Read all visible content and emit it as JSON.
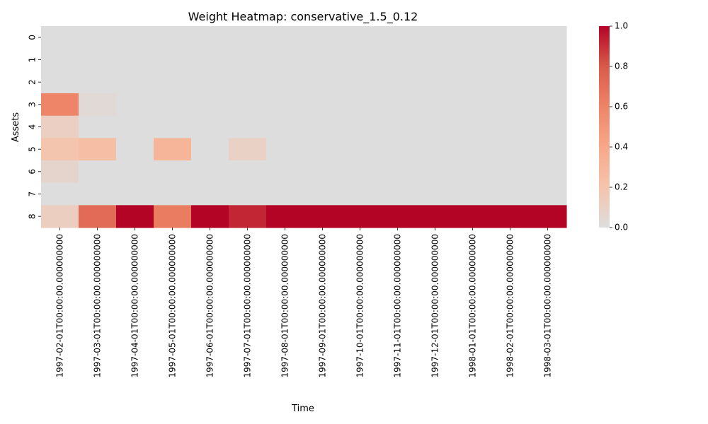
{
  "chart_data": {
    "type": "heatmap",
    "title": "Weight Heatmap: conservative_1.5_0.12",
    "xlabel": "Time",
    "ylabel": "Assets",
    "x": [
      "1997-02-01T00:00:00.000000000",
      "1997-03-01T00:00:00.000000000",
      "1997-04-01T00:00:00.000000000",
      "1997-05-01T00:00:00.000000000",
      "1997-06-01T00:00:00.000000000",
      "1997-07-01T00:00:00.000000000",
      "1997-08-01T00:00:00.000000000",
      "1997-09-01T00:00:00.000000000",
      "1997-10-01T00:00:00.000000000",
      "1997-11-01T00:00:00.000000000",
      "1997-12-01T00:00:00.000000000",
      "1998-01-01T00:00:00.000000000",
      "1998-02-01T00:00:00.000000000",
      "1998-03-01T00:00:00.000000000"
    ],
    "y": [
      "0",
      "1",
      "2",
      "3",
      "4",
      "5",
      "6",
      "7",
      "8"
    ],
    "values": [
      [
        0,
        0,
        0,
        0,
        0,
        0,
        0,
        0,
        0,
        0,
        0,
        0,
        0,
        0
      ],
      [
        0,
        0,
        0,
        0,
        0,
        0,
        0,
        0,
        0,
        0,
        0,
        0,
        0,
        0
      ],
      [
        0,
        0,
        0,
        0,
        0,
        0,
        0,
        0,
        0,
        0,
        0,
        0,
        0,
        0
      ],
      [
        0.6,
        0.03,
        0,
        0,
        0,
        0,
        0,
        0,
        0,
        0,
        0,
        0,
        0,
        0
      ],
      [
        0.11,
        0,
        0,
        0,
        0,
        0,
        0,
        0,
        0,
        0,
        0,
        0,
        0,
        0
      ],
      [
        0.19,
        0.24,
        0,
        0.31,
        0,
        0.1,
        0,
        0,
        0,
        0,
        0,
        0,
        0,
        0
      ],
      [
        0.07,
        0,
        0,
        0,
        0,
        0,
        0,
        0,
        0,
        0,
        0,
        0,
        0,
        0
      ],
      [
        0,
        0,
        0,
        0,
        0,
        0,
        0,
        0,
        0,
        0,
        0,
        0,
        0,
        0
      ],
      [
        0.12,
        0.72,
        1.0,
        0.64,
        1.0,
        0.92,
        1.0,
        1.0,
        1.0,
        1.0,
        1.0,
        1.0,
        1.0,
        1.0
      ]
    ],
    "zlim": [
      0,
      1
    ],
    "colorbar": {
      "ticks": [
        0,
        0.2,
        0.4,
        0.6,
        0.8,
        1.0
      ],
      "tick_labels": [
        "0.0",
        "0.2",
        "0.4",
        "0.6",
        "0.8",
        "1.0"
      ]
    },
    "colormap": {
      "name": "coolwarm-centered",
      "stops": [
        "#dddddd",
        "#f5c4ac",
        "#f7a889",
        "#ee8468",
        "#d85a4a",
        "#b40426"
      ]
    },
    "grid": false
  }
}
